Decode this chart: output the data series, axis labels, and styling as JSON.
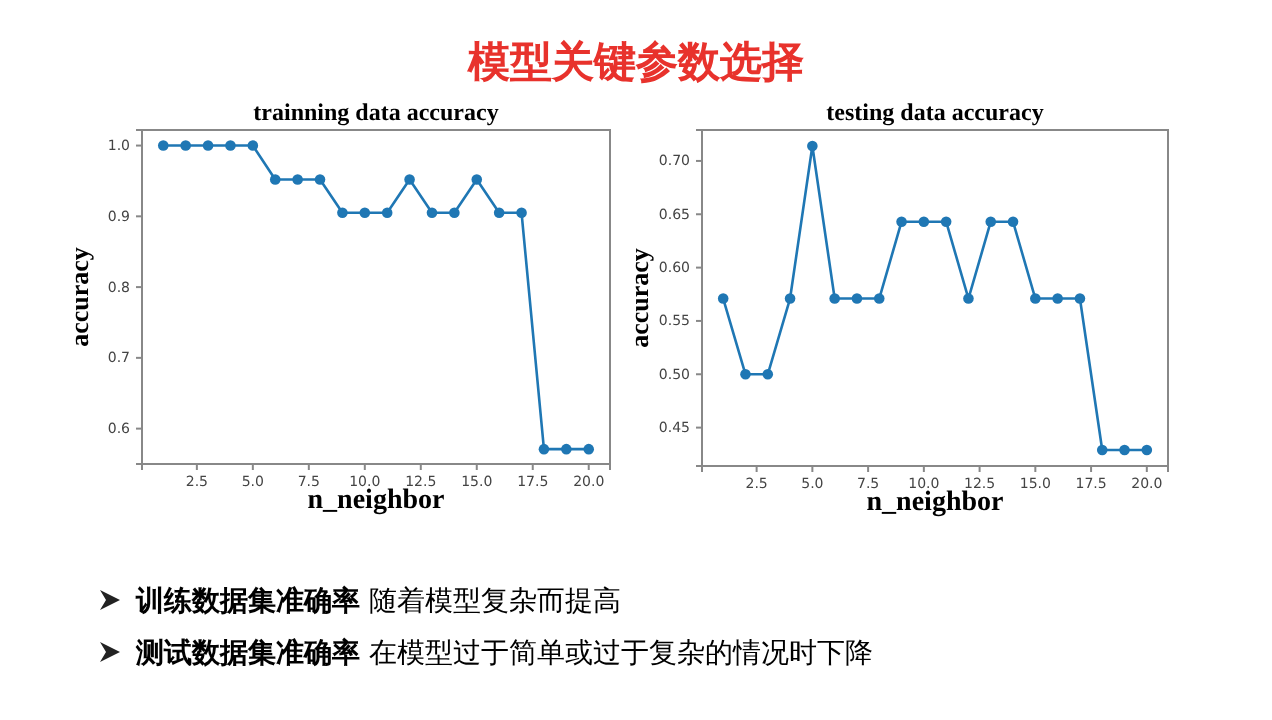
{
  "chart_data": [
    {
      "type": "line",
      "title": "trainning data accuracy",
      "xlabel": "n_neighbor",
      "ylabel": "accuracy",
      "marker": "circle",
      "grid": false,
      "x": [
        1,
        2,
        3,
        4,
        5,
        6,
        7,
        8,
        9,
        10,
        11,
        12,
        13,
        14,
        15,
        16,
        17,
        18,
        19,
        20
      ],
      "series": [
        {
          "color": "#1f77b4",
          "values": [
            1.0,
            1.0,
            1.0,
            1.0,
            1.0,
            0.952,
            0.952,
            0.952,
            0.905,
            0.905,
            0.905,
            0.952,
            0.905,
            0.905,
            0.952,
            0.905,
            0.905,
            0.571,
            0.571,
            0.571
          ]
        }
      ],
      "xlim": [
        0.05,
        20.95
      ],
      "ylim": [
        0.55,
        1.022
      ],
      "xticks": [
        2.5,
        {
          "value": 5,
          "label": "5.0"
        },
        7.5,
        {
          "value": 10,
          "label": "10.0"
        },
        12.5,
        {
          "value": 15,
          "label": "15.0"
        },
        17.5,
        {
          "value": 20,
          "label": "20.0"
        }
      ],
      "yticks": [
        0.6,
        0.7,
        0.8,
        0.9,
        {
          "value": 1,
          "label": "1.0"
        }
      ]
    },
    {
      "type": "line",
      "title": "testing data accuracy",
      "xlabel": "n_neighbor",
      "ylabel": "accuracy",
      "marker": "circle",
      "grid": false,
      "x": [
        1,
        2,
        3,
        4,
        5,
        6,
        7,
        8,
        9,
        10,
        11,
        12,
        13,
        14,
        15,
        16,
        17,
        18,
        19,
        20
      ],
      "series": [
        {
          "color": "#1f77b4",
          "values": [
            0.571,
            0.5,
            0.5,
            0.571,
            0.714,
            0.571,
            0.571,
            0.571,
            0.643,
            0.643,
            0.643,
            0.571,
            0.643,
            0.643,
            0.571,
            0.571,
            0.571,
            0.429,
            0.429,
            0.429
          ]
        }
      ],
      "xlim": [
        0.05,
        20.95
      ],
      "ylim": [
        0.414,
        0.729
      ],
      "xticks": [
        2.5,
        {
          "value": 5,
          "label": "5.0"
        },
        7.5,
        {
          "value": 10,
          "label": "10.0"
        },
        12.5,
        {
          "value": 15,
          "label": "15.0"
        },
        17.5,
        {
          "value": 20,
          "label": "20.0"
        }
      ],
      "yticks": [
        0.45,
        {
          "value": 0.5,
          "label": "0.50"
        },
        0.55,
        {
          "value": 0.6,
          "label": "0.60"
        },
        0.65,
        {
          "value": 0.7,
          "label": "0.70"
        }
      ]
    },
    {
      "type": "other",
      "title": "模型关键参数选择",
      "annotations": [
        "训练数据集准确率 随着模型复杂而提高",
        "测试数据集准确率 在模型过于简单或过于复杂的情况时下降"
      ]
    }
  ]
}
